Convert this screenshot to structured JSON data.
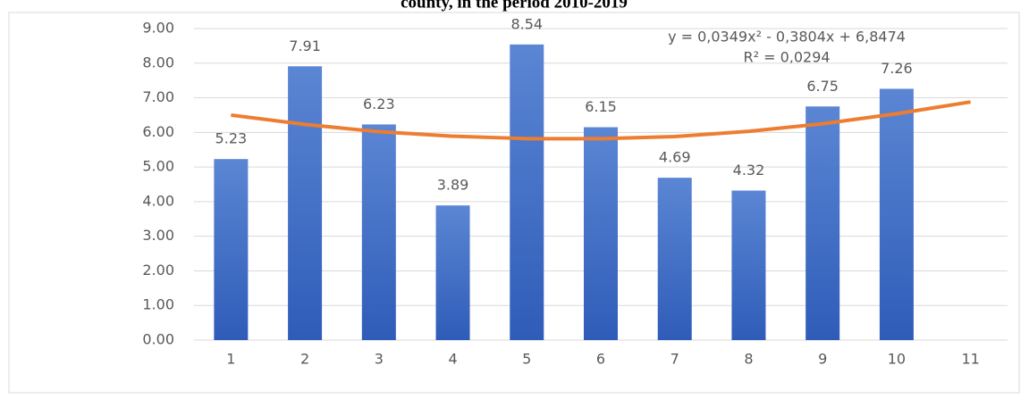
{
  "chart_data": {
    "type": "bar",
    "title": "county, in the period 2010-2019",
    "categories": [
      "1",
      "2",
      "3",
      "4",
      "5",
      "6",
      "7",
      "8",
      "9",
      "10",
      "11"
    ],
    "series": [
      {
        "color": "#4472c4",
        "values": [
          5.23,
          7.91,
          6.23,
          3.89,
          8.54,
          6.15,
          4.69,
          4.32,
          6.75,
          7.26,
          null
        ]
      },
      {
        "type": "line",
        "color": "#ed7d31",
        "values": [
          6.5,
          6.23,
          6.02,
          5.89,
          5.82,
          5.82,
          5.88,
          6.03,
          6.25,
          6.54,
          6.88
        ]
      }
    ],
    "annotations": [
      "y = 0,0349x² - 0,3804x + 6,8474",
      "R² = 0,0294"
    ],
    "ylim": [
      0,
      9
    ],
    "yticks": [
      {
        "value": 0,
        "label": "0.00"
      },
      {
        "value": 1,
        "label": "1.00"
      },
      {
        "value": 2,
        "label": "2.00"
      },
      {
        "value": 3,
        "label": "3.00"
      },
      {
        "value": 4,
        "label": "4.00"
      },
      {
        "value": 5,
        "label": "5.00"
      },
      {
        "value": 6,
        "label": "6.00"
      },
      {
        "value": 7,
        "label": "7.00"
      },
      {
        "value": 8,
        "label": "8.00"
      },
      {
        "value": 9,
        "label": "9.00"
      }
    ],
    "grid": true
  }
}
